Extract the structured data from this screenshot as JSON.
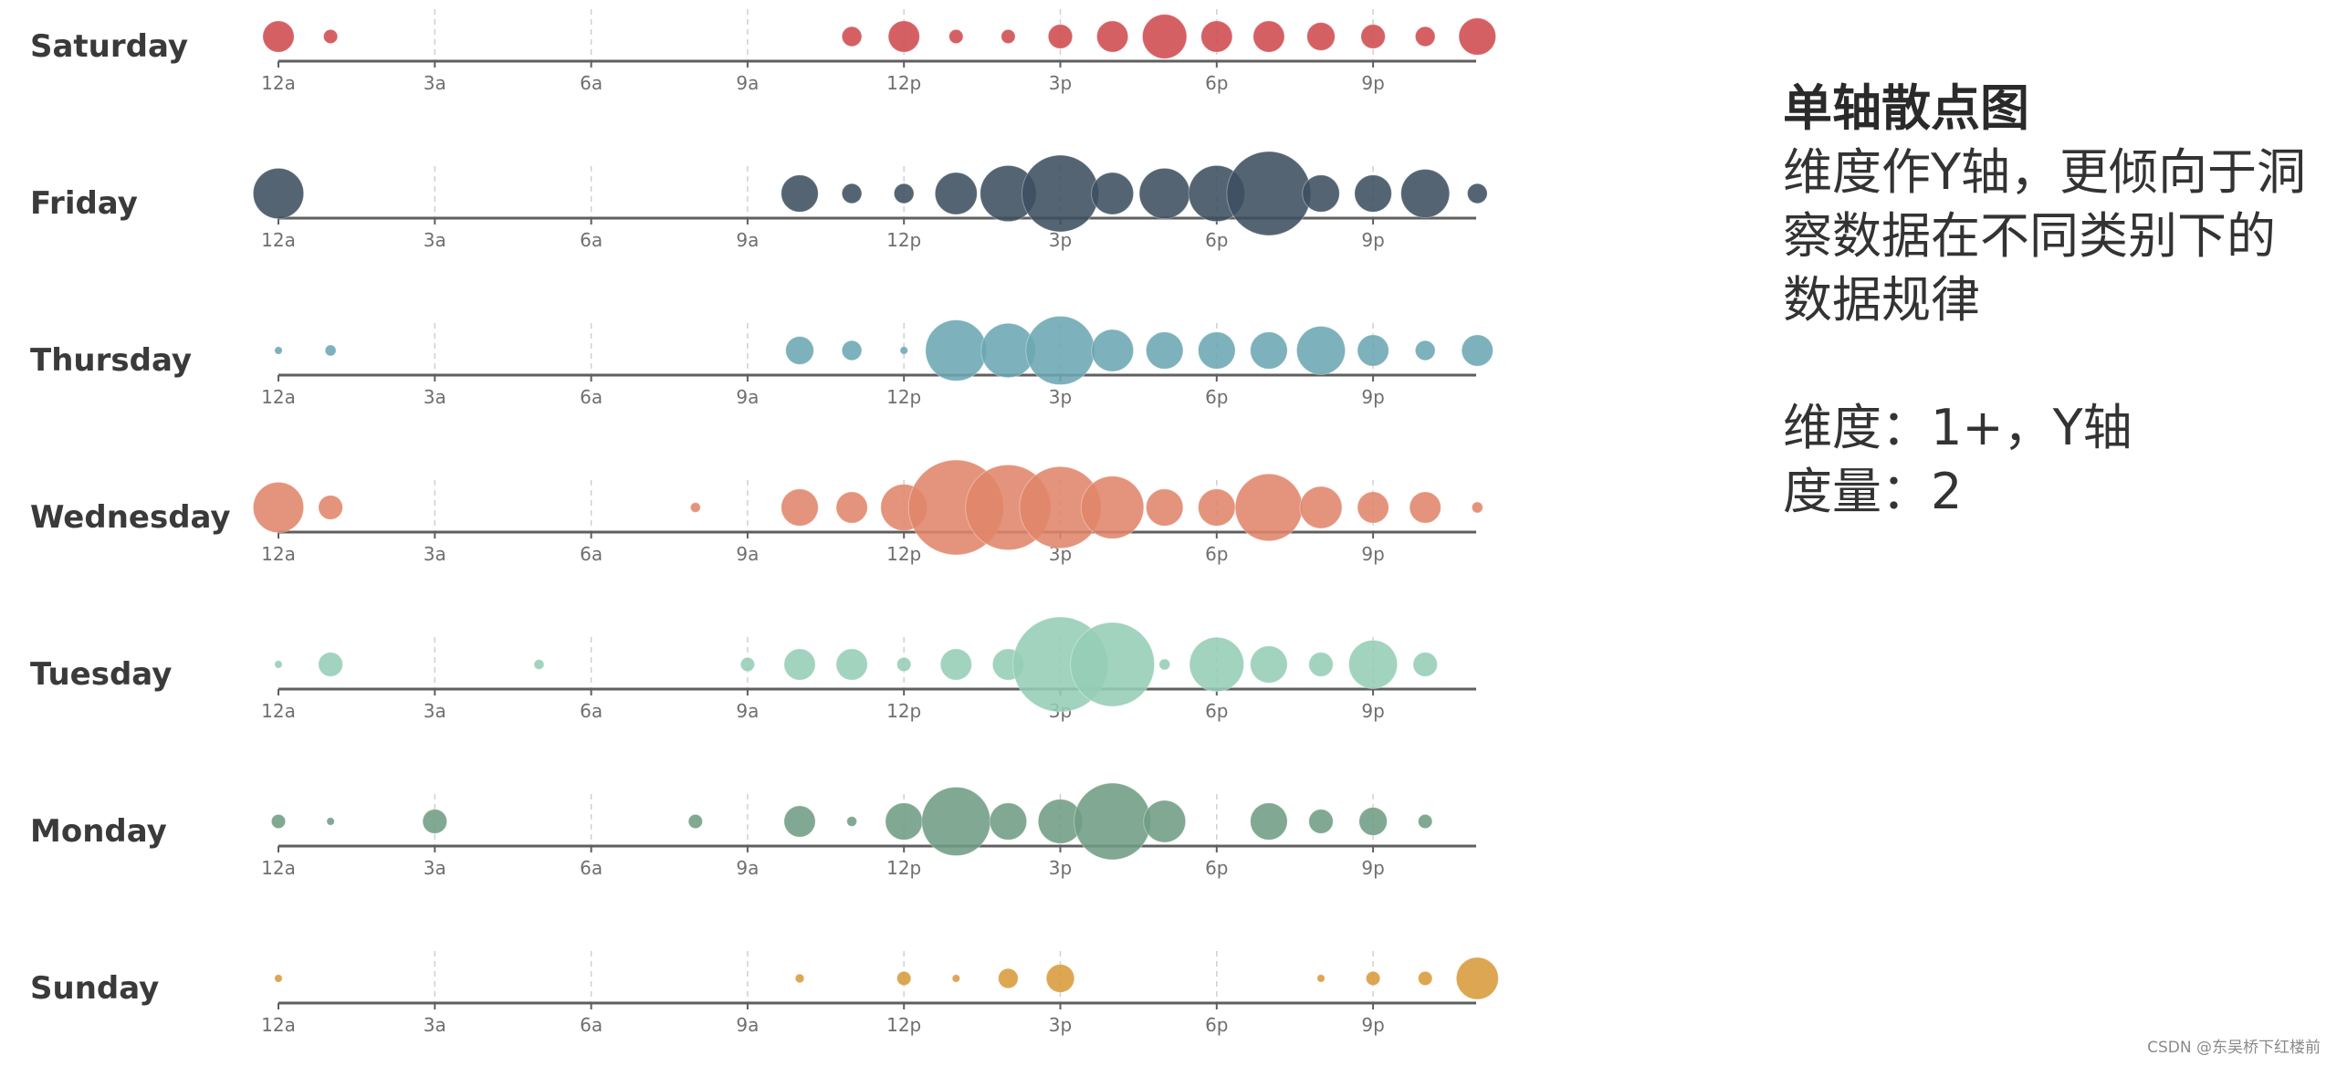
{
  "chart_data": {
    "type": "scatter",
    "subtype": "single-axis bubble",
    "title": "",
    "xlabel": "",
    "ylabel": "",
    "x_ticks": [
      "12a",
      "3a",
      "6a",
      "9a",
      "12p",
      "3p",
      "6p",
      "9p"
    ],
    "x_tick_hours": [
      0,
      3,
      6,
      9,
      12,
      15,
      18,
      21
    ],
    "x_range": [
      0,
      23
    ],
    "grid": "dashed vertical at ticks",
    "legend": "none",
    "days": [
      {
        "name": "Saturday",
        "color": "#cf4a4e",
        "points": [
          [
            0,
            5
          ],
          [
            1,
            1
          ],
          [
            11,
            2
          ],
          [
            12,
            5
          ],
          [
            13,
            1
          ],
          [
            14,
            1
          ],
          [
            15,
            3
          ],
          [
            16,
            5
          ],
          [
            17,
            10
          ],
          [
            18,
            5
          ],
          [
            19,
            5
          ],
          [
            20,
            4
          ],
          [
            21,
            3
          ],
          [
            22,
            2
          ],
          [
            23,
            7
          ]
        ]
      },
      {
        "name": "Friday",
        "color": "#3c4e60",
        "points": [
          [
            0,
            13
          ],
          [
            10,
            7
          ],
          [
            11,
            2
          ],
          [
            12,
            2
          ],
          [
            13,
            9
          ],
          [
            14,
            16
          ],
          [
            15,
            30
          ],
          [
            16,
            9
          ],
          [
            17,
            13
          ],
          [
            18,
            16
          ],
          [
            19,
            36
          ],
          [
            20,
            7
          ],
          [
            21,
            7
          ],
          [
            22,
            12
          ],
          [
            23,
            2
          ]
        ]
      },
      {
        "name": "Thursday",
        "color": "#6ba6b2",
        "points": [
          [
            0,
            0.3
          ],
          [
            1,
            0.6
          ],
          [
            10,
            4
          ],
          [
            11,
            2
          ],
          [
            12,
            0.3
          ],
          [
            13,
            19
          ],
          [
            14,
            15
          ],
          [
            15,
            24
          ],
          [
            16,
            9
          ],
          [
            17,
            7
          ],
          [
            18,
            7
          ],
          [
            19,
            7
          ],
          [
            20,
            12
          ],
          [
            21,
            5
          ],
          [
            22,
            2
          ],
          [
            23,
            5
          ]
        ]
      },
      {
        "name": "Wednesday",
        "color": "#e0856a",
        "points": [
          [
            0,
            13
          ],
          [
            1,
            3
          ],
          [
            8,
            0.5
          ],
          [
            10,
            7
          ],
          [
            11,
            5
          ],
          [
            12,
            11
          ],
          [
            13,
            46
          ],
          [
            14,
            37
          ],
          [
            15,
            34
          ],
          [
            16,
            20
          ],
          [
            17,
            7
          ],
          [
            18,
            7
          ],
          [
            19,
            23
          ],
          [
            20,
            9
          ],
          [
            21,
            5
          ],
          [
            22,
            5
          ],
          [
            23,
            0.6
          ]
        ]
      },
      {
        "name": "Tuesday",
        "color": "#94cdb6",
        "points": [
          [
            0,
            0.3
          ],
          [
            1,
            3
          ],
          [
            5,
            0.5
          ],
          [
            9,
            1
          ],
          [
            10,
            5
          ],
          [
            11,
            5
          ],
          [
            12,
            1
          ],
          [
            13,
            5
          ],
          [
            14,
            5
          ],
          [
            15,
            46
          ],
          [
            16,
            36
          ],
          [
            17,
            0.6
          ],
          [
            18,
            15
          ],
          [
            19,
            7
          ],
          [
            20,
            3
          ],
          [
            21,
            12
          ],
          [
            22,
            3
          ]
        ]
      },
      {
        "name": "Monday",
        "color": "#6f9c83",
        "points": [
          [
            0,
            1
          ],
          [
            1,
            0.3
          ],
          [
            3,
            3
          ],
          [
            8,
            1
          ],
          [
            10,
            5
          ],
          [
            11,
            0.5
          ],
          [
            12,
            7
          ],
          [
            13,
            24
          ],
          [
            14,
            7
          ],
          [
            15,
            10
          ],
          [
            16,
            30
          ],
          [
            17,
            9
          ],
          [
            19,
            7
          ],
          [
            20,
            3
          ],
          [
            21,
            4
          ],
          [
            22,
            1
          ]
        ]
      },
      {
        "name": "Sunday",
        "color": "#d89a3a",
        "points": [
          [
            0,
            0.3
          ],
          [
            10,
            0.4
          ],
          [
            12,
            1
          ],
          [
            13,
            0.3
          ],
          [
            14,
            2
          ],
          [
            15,
            4
          ],
          [
            20,
            0.3
          ],
          [
            21,
            1
          ],
          [
            22,
            1
          ],
          [
            23,
            9
          ]
        ]
      }
    ]
  },
  "panel": {
    "title": "单轴散点图",
    "desc_lines": [
      "维度作Y轴，更倾向于洞",
      "察数据在不同类别下的",
      "数据规律"
    ],
    "dim_line": "维度：1+，Y轴",
    "measure_line": "度量：2"
  },
  "watermark": "CSDN @东吴桥下红楼前"
}
